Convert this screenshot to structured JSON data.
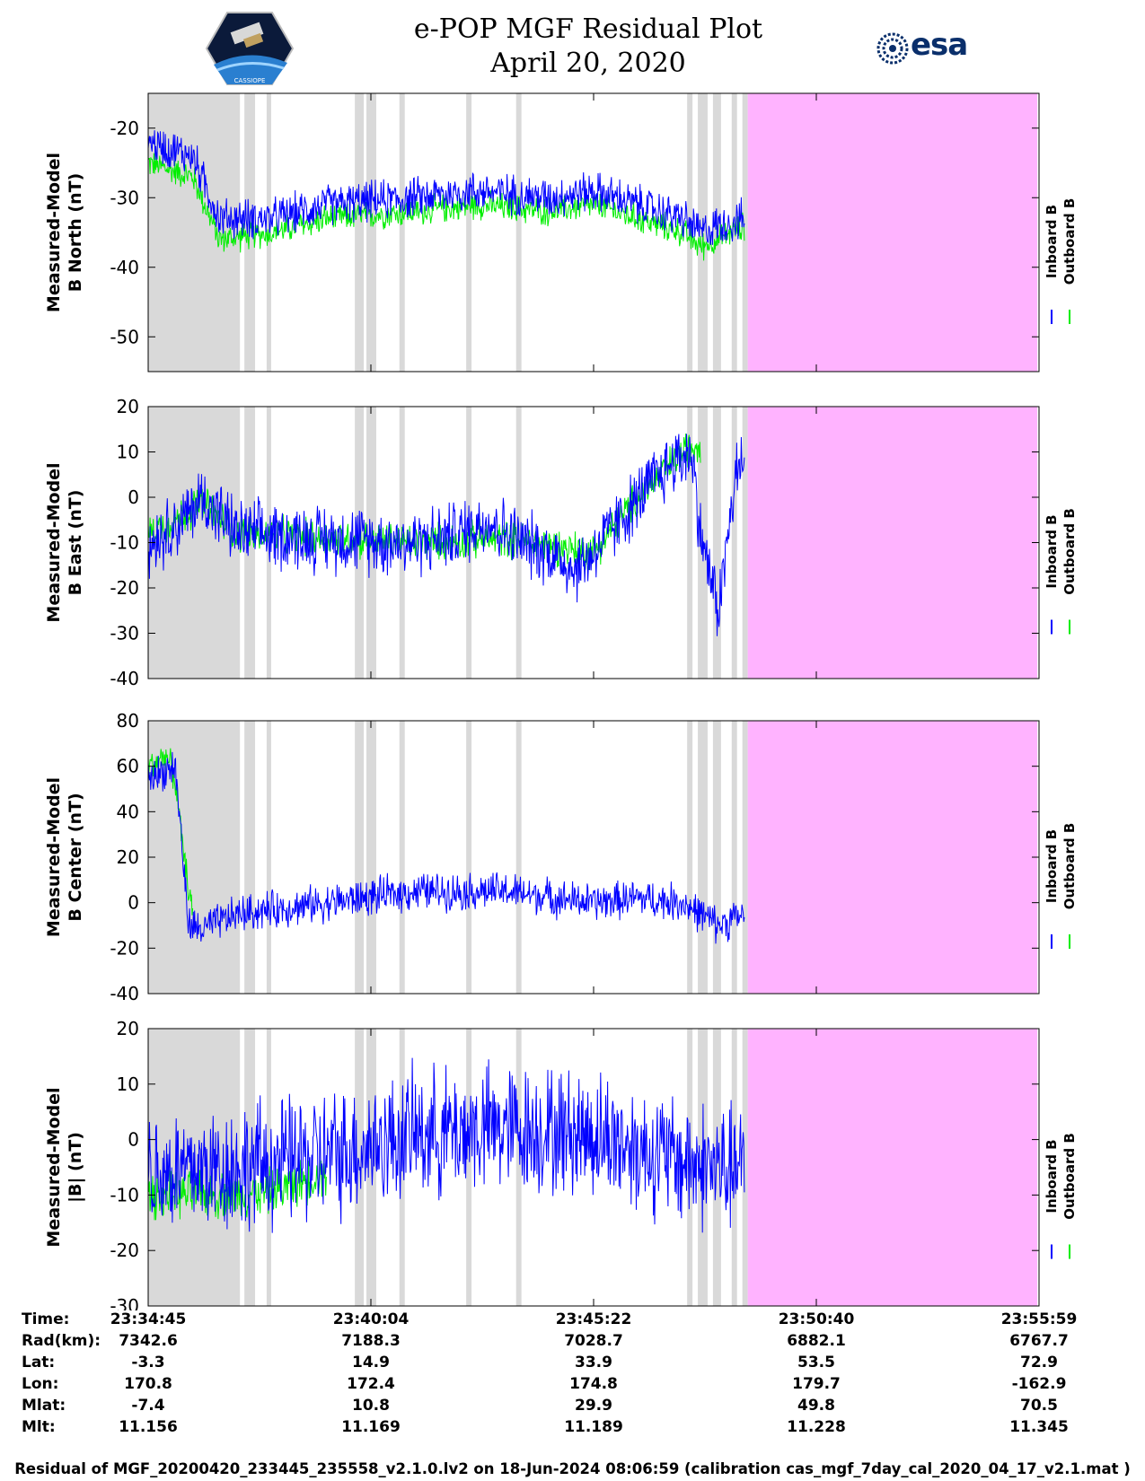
{
  "title": {
    "line1": "e-POP MGF Residual Plot",
    "line2": "April 20, 2020"
  },
  "logos": {
    "left_caption": "CASSIOPE",
    "right_text": "esa"
  },
  "colors": {
    "inboard": "#0000ff",
    "outboard": "#00ee00",
    "gray_band": "#d9d9d9",
    "pink_band": "#ffb3ff"
  },
  "chart_data": [
    {
      "type": "line",
      "ylabel_line1": "Measured-Model",
      "ylabel_line2": "B North (nT)",
      "y_ticks": [
        -20,
        -30,
        -40,
        -50
      ],
      "ylim": [
        -55,
        -15
      ],
      "legend": [
        "Inboard B",
        "Outboard B"
      ],
      "legend_placement": "right",
      "series": [
        {
          "name": "Inboard B",
          "color": "#0000ff",
          "trend": [
            [
              0,
              -22
            ],
            [
              0.05,
              -24
            ],
            [
              0.08,
              -33
            ],
            [
              0.14,
              -33
            ],
            [
              0.2,
              -31
            ],
            [
              0.3,
              -30
            ],
            [
              0.37,
              -29
            ],
            [
              0.45,
              -30
            ],
            [
              0.5,
              -29
            ],
            [
              0.55,
              -31
            ],
            [
              0.6,
              -33
            ],
            [
              0.62,
              -35
            ],
            [
              0.64,
              -34
            ],
            [
              0.67,
              -33
            ],
            [
              0.669,
              -32
            ]
          ],
          "noise": 3.5
        },
        {
          "name": "Outboard B",
          "color": "#00ee00",
          "trend": [
            [
              0,
              -25
            ],
            [
              0.05,
              -27
            ],
            [
              0.08,
              -36
            ],
            [
              0.14,
              -35
            ],
            [
              0.2,
              -33
            ],
            [
              0.3,
              -32
            ],
            [
              0.37,
              -31
            ],
            [
              0.45,
              -32
            ],
            [
              0.5,
              -31
            ],
            [
              0.55,
              -33
            ],
            [
              0.6,
              -35
            ],
            [
              0.62,
              -37
            ],
            [
              0.64,
              -36
            ],
            [
              0.669,
              -34
            ]
          ],
          "noise": 2.5
        }
      ]
    },
    {
      "type": "line",
      "ylabel_line1": "Measured-Model",
      "ylabel_line2": "B East (nT)",
      "y_ticks": [
        20,
        10,
        0,
        -10,
        -20,
        -30,
        -40
      ],
      "ylim": [
        -40,
        20
      ],
      "legend": [
        "Inboard B",
        "Outboard B"
      ],
      "legend_placement": "right",
      "series": [
        {
          "name": "Inboard B",
          "color": "#0000ff",
          "trend": [
            [
              0,
              -10
            ],
            [
              0.04,
              -5
            ],
            [
              0.06,
              0
            ],
            [
              0.1,
              -8
            ],
            [
              0.2,
              -9
            ],
            [
              0.3,
              -10
            ],
            [
              0.35,
              -8
            ],
            [
              0.38,
              -5
            ],
            [
              0.42,
              -10
            ],
            [
              0.45,
              -12
            ],
            [
              0.48,
              -16
            ],
            [
              0.5,
              -12
            ],
            [
              0.53,
              -5
            ],
            [
              0.56,
              2
            ],
            [
              0.59,
              8
            ],
            [
              0.61,
              10
            ],
            [
              0.62,
              -8
            ],
            [
              0.64,
              -25
            ],
            [
              0.66,
              5
            ],
            [
              0.669,
              8
            ]
          ],
          "noise": 9
        },
        {
          "name": "Outboard B",
          "color": "#00ee00",
          "trend": [
            [
              0,
              -8
            ],
            [
              0.04,
              -4
            ],
            [
              0.06,
              -1
            ],
            [
              0.1,
              -8
            ],
            [
              0.2,
              -9
            ],
            [
              0.3,
              -10
            ],
            [
              0.4,
              -9
            ],
            [
              0.5,
              -12
            ],
            [
              0.55,
              0
            ],
            [
              0.6,
              10
            ],
            [
              0.62,
              12
            ]
          ],
          "noise": 5
        }
      ]
    },
    {
      "type": "line",
      "ylabel_line1": "Measured-Model",
      "ylabel_line2": "B Center (nT)",
      "y_ticks": [
        80,
        60,
        40,
        20,
        0,
        -20,
        -40
      ],
      "ylim": [
        -40,
        80
      ],
      "legend": [
        "Inboard B",
        "Outboard B"
      ],
      "legend_placement": "right",
      "series": [
        {
          "name": "Inboard B",
          "color": "#0000ff",
          "trend": [
            [
              0,
              55
            ],
            [
              0.03,
              60
            ],
            [
              0.035,
              40
            ],
            [
              0.045,
              -10
            ],
            [
              0.06,
              -12
            ],
            [
              0.1,
              -5
            ],
            [
              0.2,
              0
            ],
            [
              0.3,
              5
            ],
            [
              0.4,
              5
            ],
            [
              0.5,
              0
            ],
            [
              0.55,
              2
            ],
            [
              0.6,
              0
            ],
            [
              0.62,
              -5
            ],
            [
              0.64,
              -10
            ],
            [
              0.669,
              -5
            ]
          ],
          "noise": 10
        },
        {
          "name": "Outboard B",
          "color": "#00ee00",
          "trend": [
            [
              0,
              60
            ],
            [
              0.02,
              65
            ],
            [
              0.03,
              55
            ],
            [
              0.04,
              20
            ],
            [
              0.05,
              -5
            ]
          ],
          "noise": 8
        }
      ]
    },
    {
      "type": "line",
      "ylabel_line1": "Measured-Model",
      "ylabel_line2": "|B| (nT)",
      "y_ticks": [
        20,
        10,
        0,
        -10,
        -20,
        -30
      ],
      "ylim": [
        -30,
        20
      ],
      "legend": [
        "Inboard B",
        "Outboard B"
      ],
      "legend_placement": "right",
      "series": [
        {
          "name": "Inboard B",
          "color": "#0000ff",
          "trend": [
            [
              0,
              -6
            ],
            [
              0.1,
              -5
            ],
            [
              0.2,
              -3
            ],
            [
              0.3,
              1
            ],
            [
              0.4,
              2
            ],
            [
              0.5,
              1
            ],
            [
              0.6,
              -4
            ],
            [
              0.669,
              -6
            ]
          ],
          "noise": 14
        },
        {
          "name": "Outboard B",
          "color": "#00ee00",
          "trend": [
            [
              0,
              -10
            ],
            [
              0.1,
              -10
            ],
            [
              0.15,
              -9
            ],
            [
              0.2,
              -6
            ]
          ],
          "noise": 5
        }
      ]
    }
  ],
  "info_table": {
    "rows": [
      {
        "label": "Time:",
        "values": [
          "23:34:45",
          "23:40:04",
          "23:45:22",
          "23:50:40",
          "23:55:59"
        ]
      },
      {
        "label": "Rad(km):",
        "values": [
          "7342.6",
          "7188.3",
          "7028.7",
          "6882.1",
          "6767.7"
        ]
      },
      {
        "label": "Lat:",
        "values": [
          "-3.3",
          "14.9",
          "33.9",
          "53.5",
          "72.9"
        ]
      },
      {
        "label": "Lon:",
        "values": [
          "170.8",
          "172.4",
          "174.8",
          "179.7",
          "-162.9"
        ]
      },
      {
        "label": "Mlat:",
        "values": [
          "-7.4",
          "10.8",
          "29.9",
          "49.8",
          "70.5"
        ]
      },
      {
        "label": "Mlt:",
        "values": [
          "11.156",
          "11.169",
          "11.189",
          "11.228",
          "11.345"
        ]
      }
    ]
  },
  "footer": "Residual of MGF_20200420_233445_235558_v2.1.0.lv2 on 18-Jun-2024 08:06:59 (calibration cas_mgf_7day_cal_2020_04_17_v2.1.mat )"
}
